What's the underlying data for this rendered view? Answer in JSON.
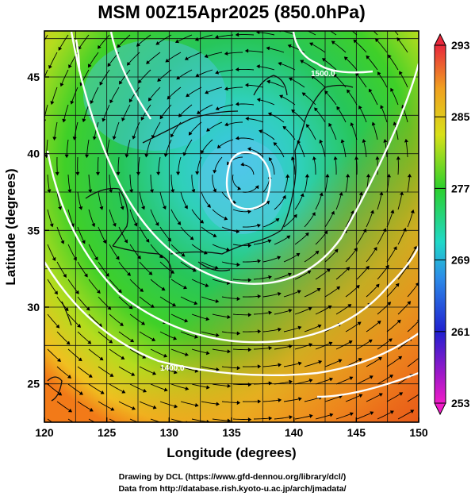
{
  "title": "MSM 00Z15Apr2025 (850.0hPa)",
  "x_axis": {
    "label": "Longitude (degrees)",
    "ticks": [
      "120",
      "125",
      "130",
      "135",
      "140",
      "145",
      "150"
    ]
  },
  "y_axis": {
    "label": "Latitude  (degrees)",
    "ticks": [
      "25",
      "30",
      "35",
      "40",
      "45"
    ]
  },
  "colorbar": {
    "ticks": [
      "293",
      "285",
      "277",
      "269",
      "261",
      "253"
    ]
  },
  "contour_labels": [
    "1500.0",
    "1400.0"
  ],
  "credits": {
    "line1": "Drawing by DCL (https://www.gfd-dennou.org/library/dcl/)",
    "line2": "Data from http://database.rish.kyoto-u.ac.jp/arch/jmadata/"
  },
  "colors": {
    "cold": "#30c8e8",
    "mid": "#22c83c",
    "warm": "#f08a1e",
    "contour": "#ffffff",
    "streamline": "#000000"
  }
}
